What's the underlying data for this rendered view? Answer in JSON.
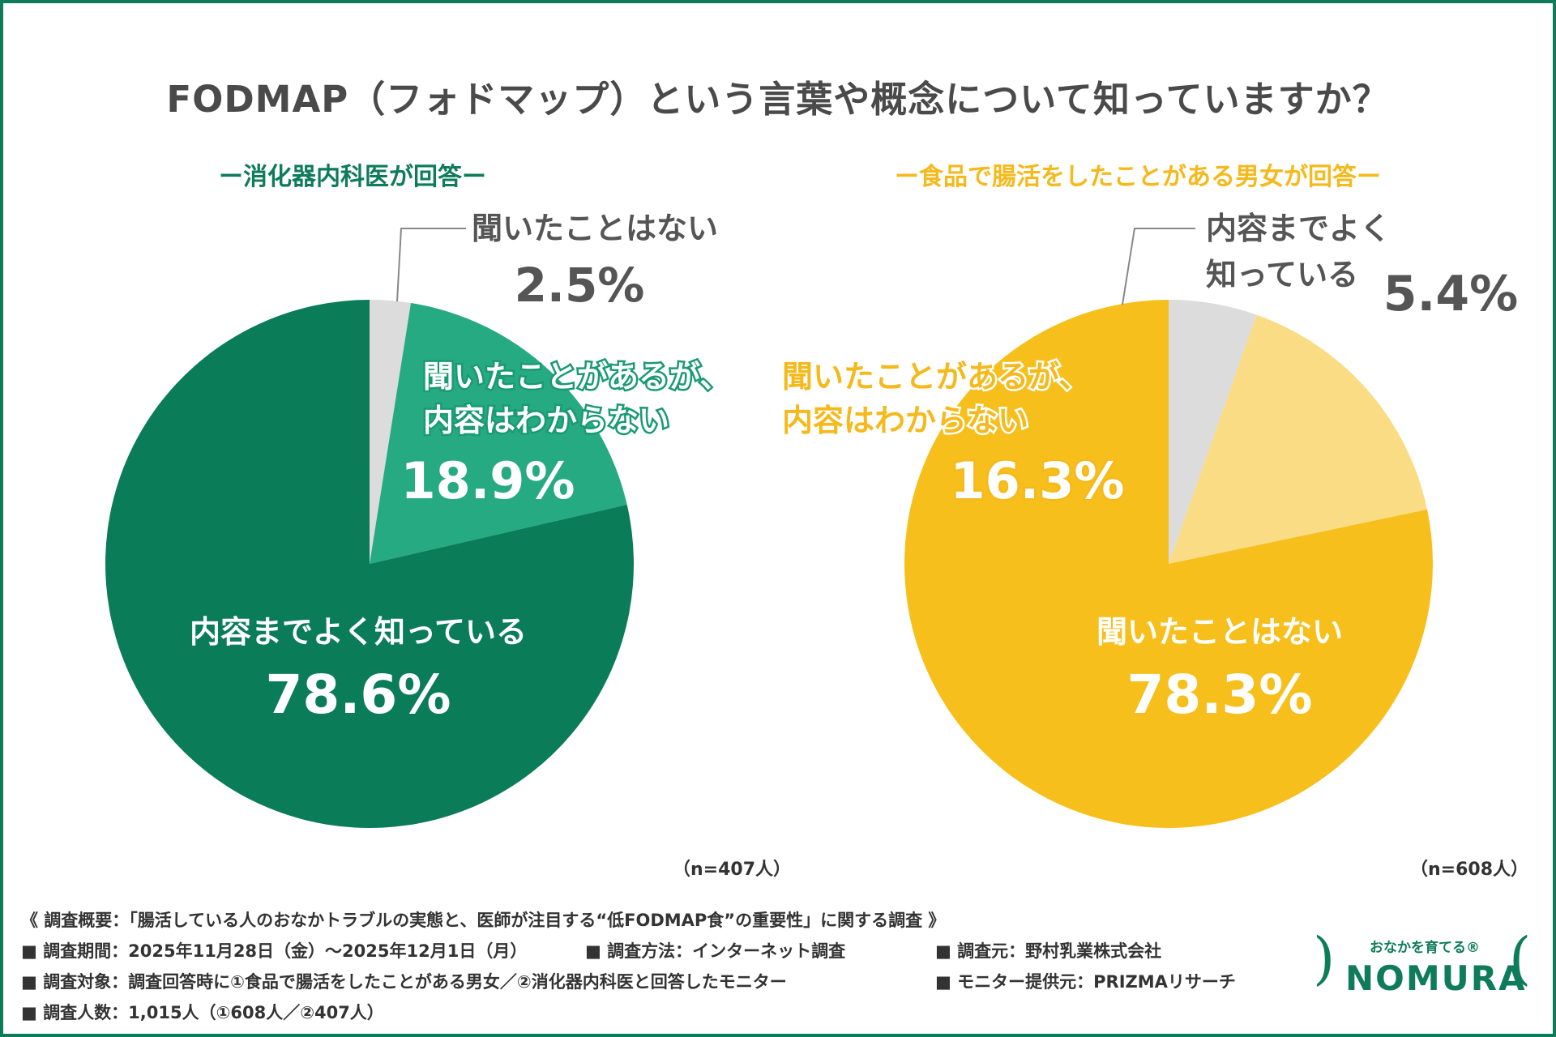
{
  "title": "FODMAP（フォドマップ）という言葉や概念について知っていますか？",
  "chart_data": [
    {
      "type": "pie",
      "subtitle": "ー消化器内科医が回答ー",
      "n_label": "（n=407人）",
      "slices": [
        {
          "label": "内容までよく知っている",
          "value": 78.6,
          "value_label": "78.6%",
          "color": "#0b7c58"
        },
        {
          "label": "聞いたことがあるが、\n内容はわからない",
          "value": 18.9,
          "value_label": "18.9%",
          "color": "#26aa82"
        },
        {
          "label": "聞いたことはない",
          "value": 2.5,
          "value_label": "2.5%",
          "color": "#dcdcdc"
        }
      ]
    },
    {
      "type": "pie",
      "subtitle": "ー食品で腸活をしたことがある男女が回答ー",
      "n_label": "（n=608人）",
      "slices": [
        {
          "label": "聞いたことはない",
          "value": 78.3,
          "value_label": "78.3%",
          "color": "#f6bf1b"
        },
        {
          "label": "聞いたことがあるが、\n内容はわからない",
          "value": 16.3,
          "value_label": "16.3%",
          "color": "#fadc85"
        },
        {
          "label": "内容までよく\n知っている",
          "value": 5.4,
          "value_label": "5.4%",
          "color": "#dcdcdc"
        }
      ]
    }
  ],
  "footer": {
    "line1": "《 調査概要：「腸活している人のおなかトラブルの実態と、医師が注目する“低FODMAP食”の重要性」に関する調査 》",
    "period": "■ 調査期間：2025年11月28日（金）～2025年12月1日（月）",
    "method": "■ 調査方法：インターネット調査",
    "source": "■ 調査元：野村乳業株式会社",
    "target": "■ 調査対象：調査回答時に①食品で腸活をしたことがある男女／②消化器内科医と回答したモニター",
    "provider": "■ モニター提供元：PRIZMAリサーチ",
    "count": "■ 調査人数：1,015人（①608人／②407人）"
  },
  "logo": {
    "tagline": "おなかを育てる®",
    "name": "NOMURA"
  }
}
